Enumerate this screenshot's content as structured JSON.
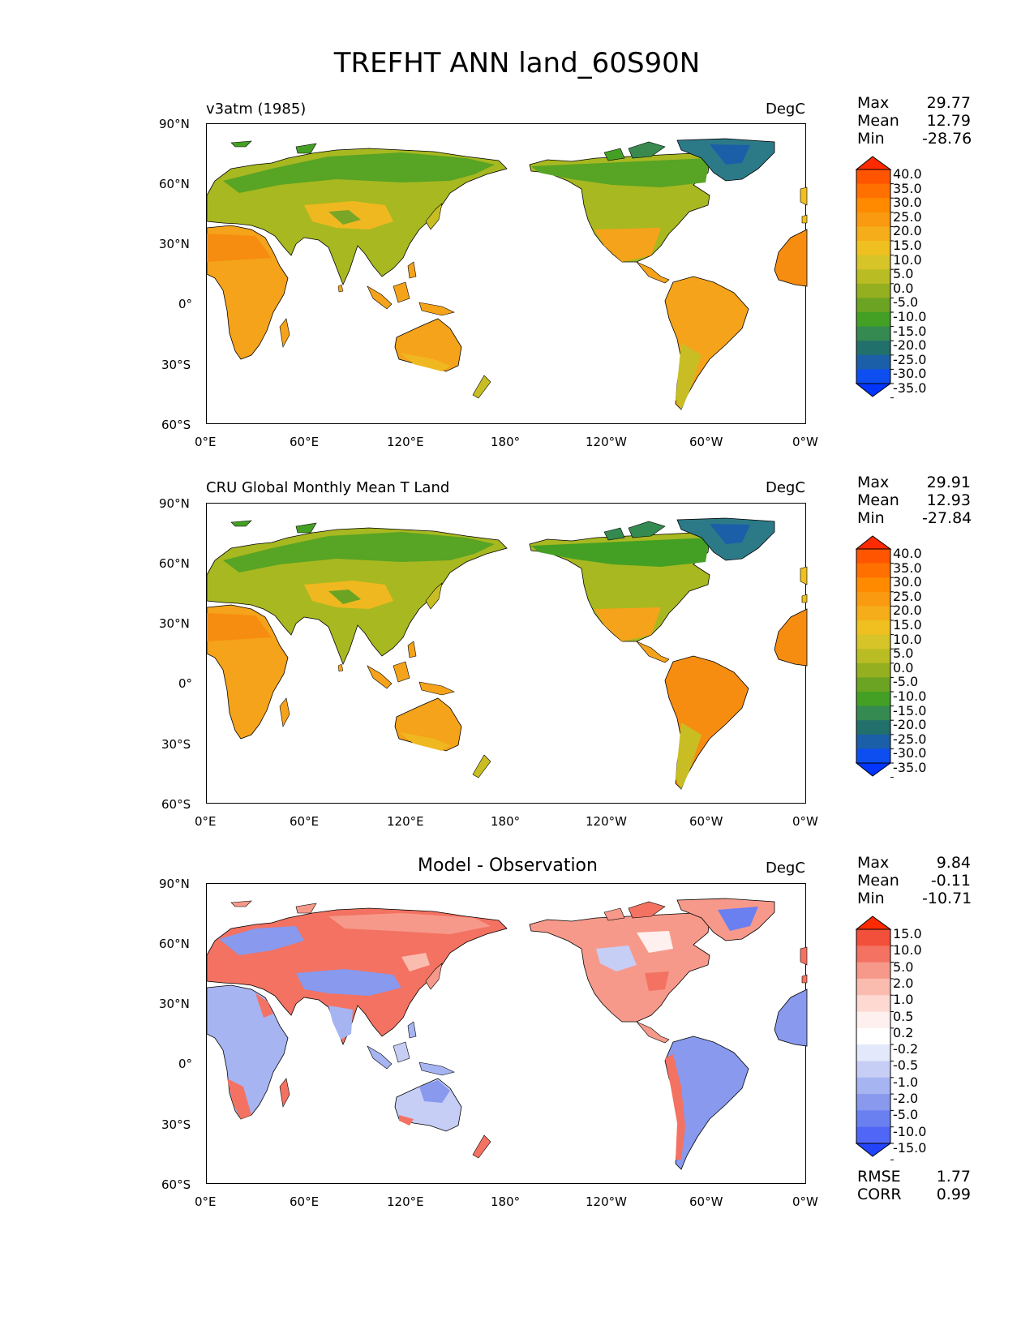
{
  "title": "TREFHT ANN land_60S90N",
  "axes": {
    "lat_ticks": [
      "90°N",
      "60°N",
      "30°N",
      "0°",
      "30°S",
      "60°S"
    ],
    "lon_ticks": [
      "0°E",
      "60°E",
      "120°E",
      "180°",
      "120°W",
      "60°W",
      "0°W"
    ]
  },
  "panels": [
    {
      "title": "v3atm (1985)",
      "units": "DegC",
      "stats": {
        "max_label": "Max",
        "max": "29.77",
        "mean_label": "Mean",
        "mean": "12.79",
        "min_label": "Min",
        "min": "-28.76"
      },
      "colorbar": [
        "40.0",
        "35.0",
        "30.0",
        "25.0",
        "20.0",
        "15.0",
        "10.0",
        "5.0",
        "0.0",
        "-5.0",
        "-10.0",
        "-15.0",
        "-20.0",
        "-25.0",
        "-30.0",
        "-35.0"
      ]
    },
    {
      "title": "CRU Global Monthly Mean T Land",
      "units": "DegC",
      "stats": {
        "max_label": "Max",
        "max": "29.91",
        "mean_label": "Mean",
        "mean": "12.93",
        "min_label": "Min",
        "min": "-27.84"
      },
      "colorbar": [
        "40.0",
        "35.0",
        "30.0",
        "25.0",
        "20.0",
        "15.0",
        "10.0",
        "5.0",
        "0.0",
        "-5.0",
        "-10.0",
        "-15.0",
        "-20.0",
        "-25.0",
        "-30.0",
        "-35.0"
      ]
    },
    {
      "title": "Model - Observation",
      "units": "DegC",
      "stats": {
        "max_label": "Max",
        "max": "9.84",
        "mean_label": "Mean",
        "mean": "-0.11",
        "min_label": "Min",
        "min": "-10.71"
      },
      "colorbar": [
        "15.0",
        "10.0",
        "5.0",
        "2.0",
        "1.0",
        "0.5",
        "0.2",
        "-0.2",
        "-0.5",
        "-1.0",
        "-2.0",
        "-5.0",
        "-10.0",
        "-15.0"
      ],
      "metrics": {
        "rmse_label": "RMSE",
        "rmse": "1.77",
        "corr_label": "CORR",
        "corr": "0.99"
      }
    }
  ],
  "colors": {
    "temp_scale": [
      "#ff2a00",
      "#ff5500",
      "#ff7000",
      "#ff8a00",
      "#f99a10",
      "#f5ae1a",
      "#f0c020",
      "#d6c428",
      "#b9bc22",
      "#94b020",
      "#6aa422",
      "#44a024",
      "#348a50",
      "#22706c",
      "#1a5fa8",
      "#0d4ef0",
      "#0036ff"
    ],
    "diff_scale": [
      "#ff2a00",
      "#f2503a",
      "#f37262",
      "#f7998a",
      "#fbbcb0",
      "#fdd9d2",
      "#fdf0ee",
      "#ffffff",
      "#e4e8fb",
      "#c6cef6",
      "#a6b4f2",
      "#8899ee",
      "#6a7ff0",
      "#4f66f6",
      "#2244ff"
    ]
  }
}
